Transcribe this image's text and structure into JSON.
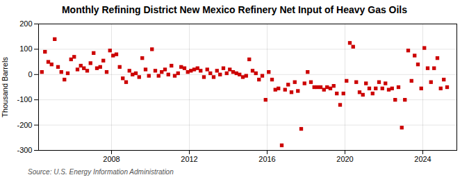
{
  "chart_data": {
    "type": "scatter",
    "title": "Monthly Refining District New Mexico Refinery Net Input of Heavy Gas Oils",
    "ylabel": "Thousand Barrels",
    "annotations": [
      "Source: U.S. Energy Information Administration"
    ],
    "color": "#cc0000",
    "marker": "square",
    "grid": true,
    "xlim": [
      2004.25,
      2025.75
    ],
    "xticks": [
      2008,
      2012,
      2016,
      2020,
      2024
    ],
    "ylim": [
      -300,
      200
    ],
    "yticks": [
      -300,
      -200,
      -100,
      0,
      100,
      200
    ],
    "x": [
      2004.42,
      2004.58,
      2004.75,
      2004.92,
      2005.08,
      2005.25,
      2005.42,
      2005.58,
      2005.75,
      2005.92,
      2006.08,
      2006.25,
      2006.42,
      2006.58,
      2006.75,
      2006.92,
      2007.08,
      2007.25,
      2007.42,
      2007.58,
      2007.75,
      2007.92,
      2008.08,
      2008.25,
      2008.42,
      2008.58,
      2008.75,
      2008.92,
      2009.08,
      2009.25,
      2009.42,
      2009.58,
      2009.75,
      2009.92,
      2010.08,
      2010.25,
      2010.42,
      2010.58,
      2010.75,
      2010.92,
      2011.08,
      2011.25,
      2011.42,
      2011.58,
      2011.75,
      2011.92,
      2012.08,
      2012.25,
      2012.42,
      2012.58,
      2012.75,
      2012.92,
      2013.08,
      2013.25,
      2013.42,
      2013.58,
      2013.75,
      2013.92,
      2014.08,
      2014.25,
      2014.42,
      2014.58,
      2014.75,
      2014.92,
      2015.08,
      2015.25,
      2015.42,
      2015.58,
      2015.75,
      2015.92,
      2016.08,
      2016.25,
      2016.42,
      2016.58,
      2016.75,
      2016.92,
      2017.08,
      2017.25,
      2017.42,
      2017.58,
      2017.75,
      2017.92,
      2018.08,
      2018.25,
      2018.42,
      2018.58,
      2018.75,
      2018.92,
      2019.08,
      2019.25,
      2019.42,
      2019.58,
      2019.75,
      2019.92,
      2020.08,
      2020.25,
      2020.42,
      2020.58,
      2020.75,
      2020.92,
      2021.08,
      2021.25,
      2021.42,
      2021.58,
      2021.75,
      2021.92,
      2022.08,
      2022.25,
      2022.42,
      2022.58,
      2022.75,
      2022.92,
      2023.08,
      2023.25,
      2023.42,
      2023.58,
      2023.75,
      2023.92,
      2024.08,
      2024.25,
      2024.42,
      2024.58,
      2024.75,
      2024.92,
      2025.08,
      2025.25
    ],
    "values": [
      10,
      90,
      50,
      40,
      140,
      30,
      10,
      -20,
      5,
      60,
      70,
      20,
      35,
      25,
      15,
      45,
      85,
      25,
      30,
      55,
      10,
      95,
      75,
      80,
      30,
      -15,
      -30,
      15,
      0,
      5,
      -10,
      65,
      20,
      -5,
      100,
      15,
      -5,
      10,
      20,
      0,
      35,
      -5,
      5,
      30,
      25,
      10,
      15,
      20,
      25,
      15,
      -10,
      20,
      5,
      -10,
      15,
      0,
      25,
      5,
      20,
      10,
      5,
      0,
      -10,
      -5,
      60,
      15,
      5,
      -20,
      -5,
      -100,
      10,
      -20,
      -60,
      -55,
      -280,
      -60,
      -40,
      -70,
      -30,
      -65,
      -215,
      -35,
      10,
      -30,
      -50,
      -50,
      -50,
      -60,
      -50,
      -55,
      -45,
      -75,
      -120,
      -75,
      -25,
      125,
      110,
      -30,
      -70,
      -80,
      -35,
      -55,
      -75,
      -55,
      -30,
      -55,
      -35,
      -60,
      -55,
      -100,
      -50,
      -210,
      -100,
      95,
      -25,
      75,
      40,
      -55,
      105,
      25,
      -30,
      25,
      65,
      -55,
      -20,
      -50
    ]
  }
}
